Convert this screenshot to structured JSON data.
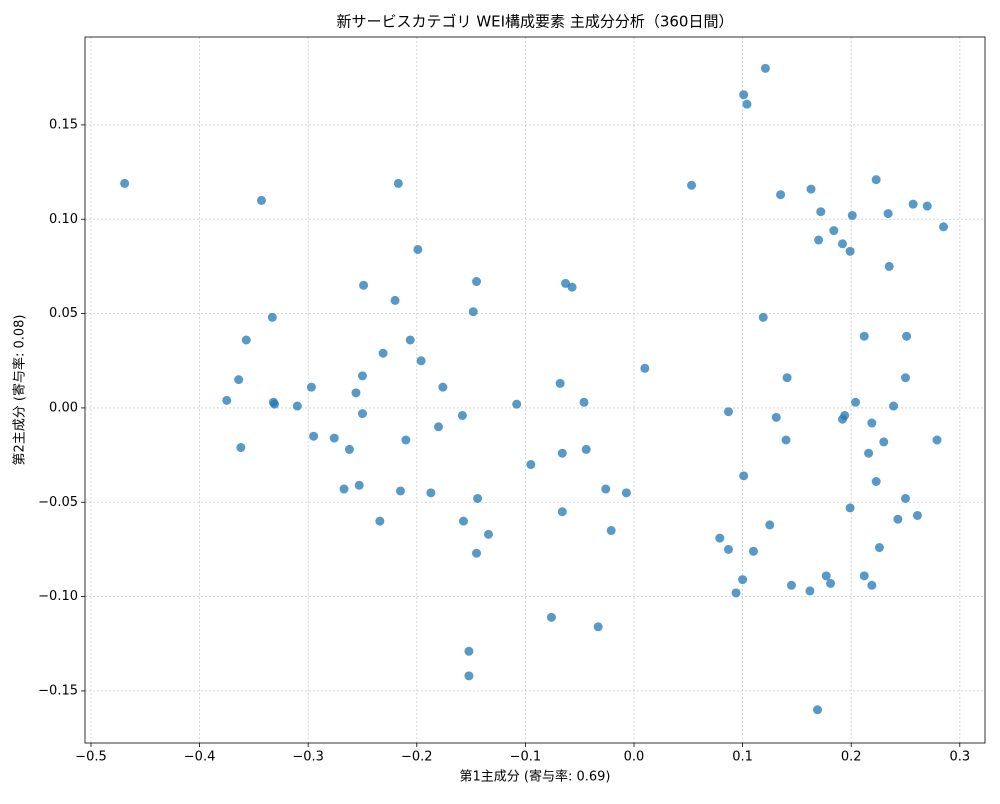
{
  "chart_data": {
    "type": "scatter",
    "title": "新サービスカテゴリ WEI構成要素 主成分分析（360日間）",
    "x_label": "第1主成分 (寄与率: 0.69)",
    "y_label": "第2主成分 (寄与率: 0.08)",
    "color": "#1f77b4",
    "grid": true,
    "xlim": [
      -0.5055,
      0.3232
    ],
    "ylim": [
      -0.1776,
      0.1966
    ],
    "xticks": [
      {
        "value": -0.5,
        "label": "−0.5"
      },
      {
        "value": -0.4,
        "label": "−0.4"
      },
      {
        "value": -0.3,
        "label": "−0.3"
      },
      {
        "value": -0.2,
        "label": "−0.2"
      },
      {
        "value": -0.1,
        "label": "−0.1"
      },
      {
        "value": 0,
        "label": "0.0"
      },
      0.1,
      0.2,
      0.3
    ],
    "yticks": [
      {
        "value": -0.15,
        "label": "−0.15"
      },
      {
        "value": -0.1,
        "label": "−0.10"
      },
      {
        "value": -0.05,
        "label": "−0.05"
      },
      {
        "value": 0,
        "label": "0.00"
      },
      0.05,
      {
        "value": 0.1,
        "label": "0.10"
      },
      0.15
    ],
    "x": [
      -0.469,
      -0.343,
      -0.217,
      -0.199,
      -0.145,
      -0.249,
      -0.22,
      -0.148,
      -0.333,
      -0.357,
      -0.206,
      -0.231,
      -0.196,
      -0.364,
      -0.25,
      -0.297,
      -0.176,
      -0.256,
      -0.375,
      -0.332,
      -0.331,
      -0.31,
      -0.25,
      -0.158,
      -0.18,
      -0.295,
      -0.276,
      -0.21,
      -0.362,
      -0.262,
      -0.267,
      -0.253,
      -0.215,
      -0.187,
      -0.144,
      -0.234,
      -0.157,
      -0.134,
      -0.145,
      -0.152,
      -0.152,
      -0.108,
      -0.095,
      -0.063,
      -0.057,
      -0.068,
      -0.046,
      -0.066,
      -0.044,
      -0.066,
      -0.026,
      -0.007,
      -0.021,
      -0.076,
      -0.033,
      0.01,
      0.053,
      0.101,
      0.104,
      0.121,
      0.135,
      0.163,
      0.172,
      0.223,
      0.201,
      0.234,
      0.257,
      0.27,
      0.285,
      0.184,
      0.17,
      0.192,
      0.199,
      0.235,
      0.119,
      0.212,
      0.251,
      0.141,
      0.25,
      0.204,
      0.239,
      0.087,
      0.131,
      0.194,
      0.192,
      0.219,
      0.14,
      0.279,
      0.216,
      0.23,
      0.101,
      0.223,
      0.25,
      0.199,
      0.261,
      0.243,
      0.125,
      0.079,
      0.087,
      0.11,
      0.226,
      0.1,
      0.177,
      0.212,
      0.181,
      0.145,
      0.219,
      0.094,
      0.162,
      0.169
    ],
    "values": [
      0.119,
      0.11,
      0.119,
      0.084,
      0.067,
      0.065,
      0.057,
      0.051,
      0.048,
      0.036,
      0.036,
      0.029,
      0.025,
      0.015,
      0.017,
      0.011,
      0.011,
      0.008,
      0.004,
      0.003,
      0.002,
      0.001,
      -0.003,
      -0.004,
      -0.01,
      -0.015,
      -0.016,
      -0.017,
      -0.021,
      -0.022,
      -0.043,
      -0.041,
      -0.044,
      -0.045,
      -0.048,
      -0.06,
      -0.06,
      -0.067,
      -0.077,
      -0.129,
      -0.142,
      0.002,
      -0.03,
      0.066,
      0.064,
      0.013,
      0.003,
      -0.024,
      -0.022,
      -0.055,
      -0.043,
      -0.045,
      -0.065,
      -0.111,
      -0.116,
      0.021,
      0.118,
      0.166,
      0.161,
      0.18,
      0.113,
      0.116,
      0.104,
      0.121,
      0.102,
      0.103,
      0.108,
      0.107,
      0.096,
      0.094,
      0.089,
      0.087,
      0.083,
      0.075,
      0.048,
      0.038,
      0.038,
      0.016,
      0.016,
      0.003,
      0.001,
      -0.002,
      -0.005,
      -0.004,
      -0.006,
      -0.008,
      -0.017,
      -0.017,
      -0.024,
      -0.018,
      -0.036,
      -0.039,
      -0.048,
      -0.053,
      -0.057,
      -0.059,
      -0.062,
      -0.069,
      -0.075,
      -0.076,
      -0.074,
      -0.091,
      -0.089,
      -0.089,
      -0.093,
      -0.094,
      -0.094,
      -0.098,
      -0.097,
      -0.16
    ]
  }
}
